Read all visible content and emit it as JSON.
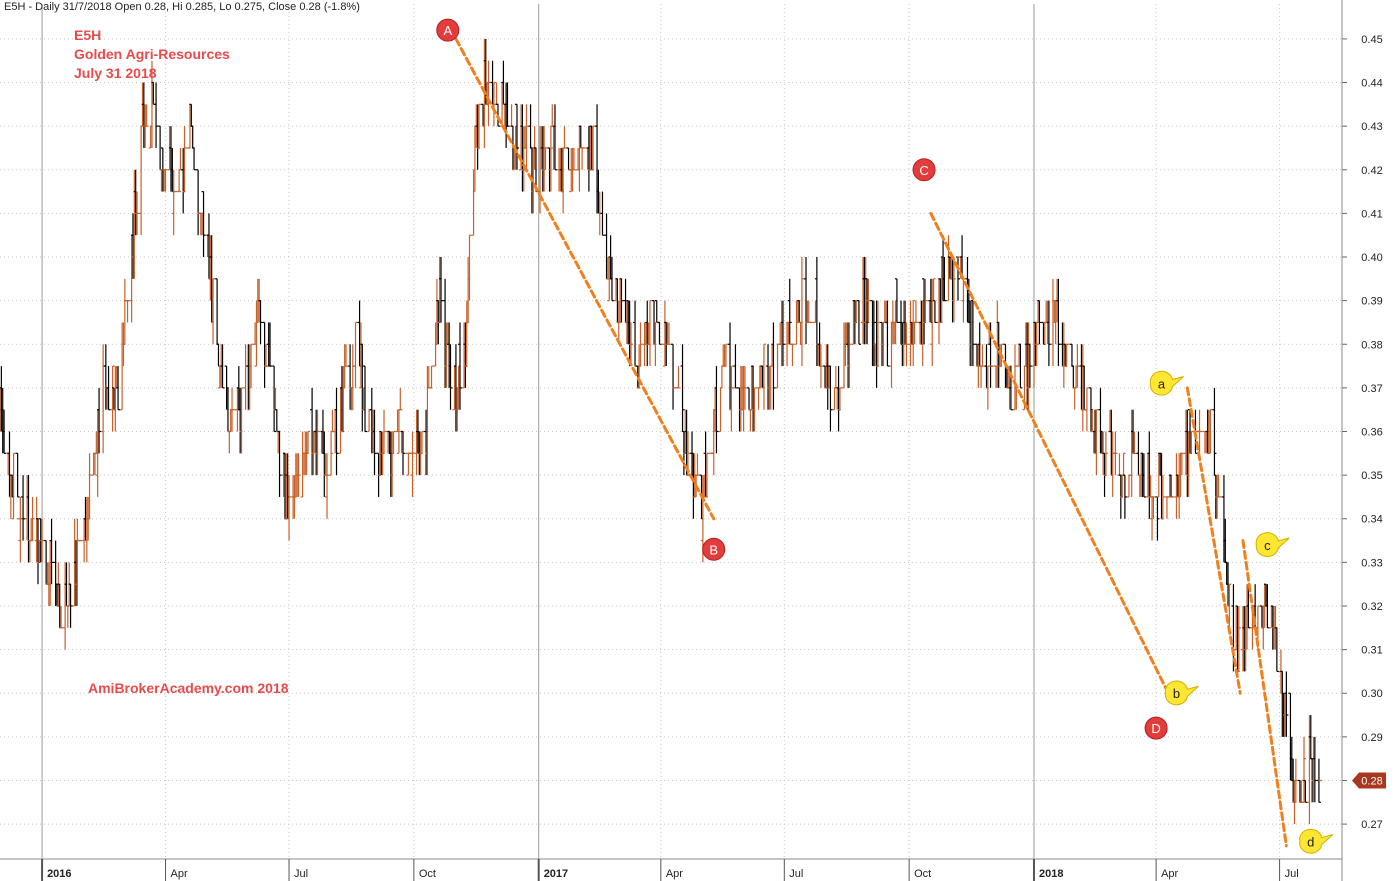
{
  "header": "E5H - Daily 31/7/2018 Open 0.28, Hi 0.285, Lo 0.275, Close 0.28 (-1.8%)",
  "notes": [
    "E5H",
    "Golden Agri-Resources",
    "July 31 2018"
  ],
  "watermark": "AmiBrokerAcademy.com  2018",
  "colors": {
    "up": "#c8602a",
    "down": "#000000",
    "trend": "#f0801e",
    "red_marker": "#e23c3c",
    "yellow_marker": "#ffe632",
    "grid": "#c8c8c8",
    "price_tag": "#a8381e"
  },
  "chart_data": {
    "type": "bar",
    "title": "",
    "symbol": "E5H",
    "xlabel": "",
    "ylabel": "",
    "ylim": [
      0.262,
      0.458
    ],
    "yticks": [
      0.27,
      0.28,
      0.29,
      0.3,
      0.31,
      0.32,
      0.33,
      0.34,
      0.35,
      0.36,
      0.37,
      0.38,
      0.39,
      0.4,
      0.41,
      0.42,
      0.43,
      0.44,
      0.45
    ],
    "xlim": [
      "2015-12-01",
      "2018-08-16"
    ],
    "xticks": [
      {
        "date": "2016-01-01",
        "label": "2016",
        "major": true
      },
      {
        "date": "2016-04-01",
        "label": "Apr",
        "major": false
      },
      {
        "date": "2016-07-01",
        "label": "Jul",
        "major": false
      },
      {
        "date": "2016-10-01",
        "label": "Oct",
        "major": false
      },
      {
        "date": "2017-01-01",
        "label": "2017",
        "major": true
      },
      {
        "date": "2017-04-01",
        "label": "Apr",
        "major": false
      },
      {
        "date": "2017-07-01",
        "label": "Jul",
        "major": false
      },
      {
        "date": "2017-10-01",
        "label": "Oct",
        "major": false
      },
      {
        "date": "2018-01-01",
        "label": "2018",
        "major": true
      },
      {
        "date": "2018-04-01",
        "label": "Apr",
        "major": false
      },
      {
        "date": "2018-07-01",
        "label": "Jul",
        "major": false
      }
    ],
    "grid": true,
    "last_close": 0.28,
    "price_tag_label": "0.28",
    "close_path": [
      [
        "2015-12-01",
        0.365
      ],
      [
        "2015-12-10",
        0.35
      ],
      [
        "2015-12-20",
        0.34
      ],
      [
        "2016-01-05",
        0.33
      ],
      [
        "2016-01-15",
        0.315
      ],
      [
        "2016-01-25",
        0.33
      ],
      [
        "2016-02-05",
        0.345
      ],
      [
        "2016-02-15",
        0.37
      ],
      [
        "2016-02-25",
        0.37
      ],
      [
        "2016-03-05",
        0.395
      ],
      [
        "2016-03-15",
        0.43
      ],
      [
        "2016-03-22",
        0.435
      ],
      [
        "2016-03-30",
        0.42
      ],
      [
        "2016-04-10",
        0.415
      ],
      [
        "2016-04-20",
        0.425
      ],
      [
        "2016-04-30",
        0.405
      ],
      [
        "2016-05-10",
        0.38
      ],
      [
        "2016-05-20",
        0.36
      ],
      [
        "2016-05-30",
        0.37
      ],
      [
        "2016-06-10",
        0.39
      ],
      [
        "2016-06-20",
        0.36
      ],
      [
        "2016-06-30",
        0.345
      ],
      [
        "2016-07-10",
        0.355
      ],
      [
        "2016-07-20",
        0.36
      ],
      [
        "2016-07-30",
        0.35
      ],
      [
        "2016-08-10",
        0.37
      ],
      [
        "2016-08-20",
        0.38
      ],
      [
        "2016-08-30",
        0.36
      ],
      [
        "2016-09-10",
        0.355
      ],
      [
        "2016-09-20",
        0.36
      ],
      [
        "2016-09-30",
        0.355
      ],
      [
        "2016-10-10",
        0.36
      ],
      [
        "2016-10-20",
        0.39
      ],
      [
        "2016-10-30",
        0.365
      ],
      [
        "2016-11-08",
        0.38
      ],
      [
        "2016-11-15",
        0.425
      ],
      [
        "2016-11-22",
        0.44
      ],
      [
        "2016-11-30",
        0.435
      ],
      [
        "2016-12-10",
        0.43
      ],
      [
        "2016-12-20",
        0.425
      ],
      [
        "2016-12-30",
        0.42
      ],
      [
        "2017-01-10",
        0.425
      ],
      [
        "2017-01-20",
        0.42
      ],
      [
        "2017-01-30",
        0.425
      ],
      [
        "2017-02-10",
        0.425
      ],
      [
        "2017-02-15",
        0.41
      ],
      [
        "2017-02-22",
        0.395
      ],
      [
        "2017-03-05",
        0.385
      ],
      [
        "2017-03-15",
        0.375
      ],
      [
        "2017-03-25",
        0.385
      ],
      [
        "2017-04-05",
        0.38
      ],
      [
        "2017-04-15",
        0.365
      ],
      [
        "2017-04-25",
        0.345
      ],
      [
        "2017-05-01",
        0.345
      ],
      [
        "2017-05-10",
        0.36
      ],
      [
        "2017-05-20",
        0.375
      ],
      [
        "2017-05-30",
        0.365
      ],
      [
        "2017-06-10",
        0.37
      ],
      [
        "2017-06-20",
        0.375
      ],
      [
        "2017-06-30",
        0.38
      ],
      [
        "2017-07-10",
        0.385
      ],
      [
        "2017-07-20",
        0.39
      ],
      [
        "2017-07-30",
        0.375
      ],
      [
        "2017-08-10",
        0.37
      ],
      [
        "2017-08-20",
        0.385
      ],
      [
        "2017-08-30",
        0.39
      ],
      [
        "2017-09-10",
        0.38
      ],
      [
        "2017-09-20",
        0.385
      ],
      [
        "2017-09-30",
        0.38
      ],
      [
        "2017-10-10",
        0.385
      ],
      [
        "2017-10-20",
        0.39
      ],
      [
        "2017-10-30",
        0.395
      ],
      [
        "2017-11-08",
        0.4
      ],
      [
        "2017-11-15",
        0.385
      ],
      [
        "2017-11-25",
        0.375
      ],
      [
        "2017-12-05",
        0.38
      ],
      [
        "2017-12-15",
        0.37
      ],
      [
        "2017-12-25",
        0.375
      ],
      [
        "2018-01-05",
        0.385
      ],
      [
        "2018-01-15",
        0.385
      ],
      [
        "2018-01-25",
        0.38
      ],
      [
        "2018-02-05",
        0.37
      ],
      [
        "2018-02-15",
        0.36
      ],
      [
        "2018-02-25",
        0.355
      ],
      [
        "2018-03-05",
        0.35
      ],
      [
        "2018-03-15",
        0.355
      ],
      [
        "2018-03-25",
        0.35
      ],
      [
        "2018-04-05",
        0.345
      ],
      [
        "2018-04-15",
        0.35
      ],
      [
        "2018-04-25",
        0.355
      ],
      [
        "2018-05-05",
        0.365
      ],
      [
        "2018-05-12",
        0.36
      ],
      [
        "2018-05-20",
        0.335
      ],
      [
        "2018-05-26",
        0.315
      ],
      [
        "2018-06-01",
        0.31
      ],
      [
        "2018-06-07",
        0.32
      ],
      [
        "2018-06-13",
        0.315
      ],
      [
        "2018-06-20",
        0.325
      ],
      [
        "2018-06-27",
        0.315
      ],
      [
        "2018-07-03",
        0.3
      ],
      [
        "2018-07-08",
        0.285
      ],
      [
        "2018-07-12",
        0.275
      ],
      [
        "2018-07-18",
        0.28
      ],
      [
        "2018-07-24",
        0.285
      ],
      [
        "2018-07-31",
        0.28
      ]
    ],
    "labeled_points": [
      {
        "label": "A",
        "date": "2016-10-26",
        "price": 0.452,
        "style": "red"
      },
      {
        "label": "B",
        "date": "2017-05-10",
        "price": 0.333,
        "style": "red"
      },
      {
        "label": "C",
        "date": "2017-10-12",
        "price": 0.42,
        "style": "red"
      },
      {
        "label": "D",
        "date": "2018-04-01",
        "price": 0.292,
        "style": "red"
      },
      {
        "label": "a",
        "date": "2018-04-05",
        "price": 0.371,
        "style": "yellow"
      },
      {
        "label": "b",
        "date": "2018-04-16",
        "price": 0.3,
        "style": "yellow"
      },
      {
        "label": "c",
        "date": "2018-06-22",
        "price": 0.334,
        "style": "yellow"
      },
      {
        "label": "d",
        "date": "2018-07-24",
        "price": 0.266,
        "style": "yellow"
      }
    ],
    "trendlines": [
      {
        "from": [
          "2016-11-01",
          0.45
        ],
        "to": [
          "2017-05-10",
          0.34
        ]
      },
      {
        "from": [
          "2017-10-17",
          0.41
        ],
        "to": [
          "2018-04-10",
          0.3
        ]
      },
      {
        "from": [
          "2018-04-24",
          0.37
        ],
        "to": [
          "2018-06-02",
          0.3
        ]
      },
      {
        "from": [
          "2018-06-04",
          0.335
        ],
        "to": [
          "2018-07-06",
          0.265
        ]
      }
    ]
  }
}
